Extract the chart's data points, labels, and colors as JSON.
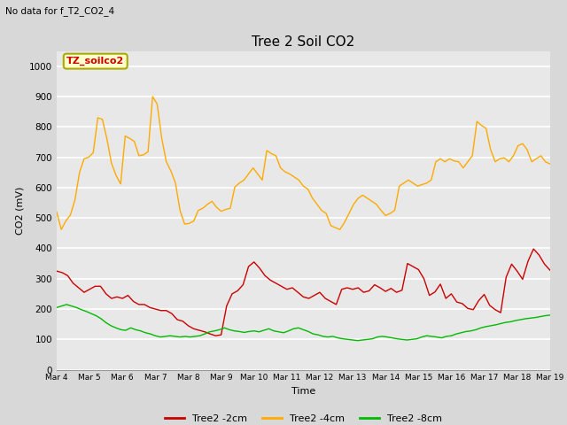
{
  "title": "Tree 2 Soil CO2",
  "subtitle": "No data for f_T2_CO2_4",
  "xlabel": "Time",
  "ylabel": "CO2 (mV)",
  "ylim": [
    0,
    1050
  ],
  "legend_label": "TZ_soilco2",
  "series_labels": [
    "Tree2 -2cm",
    "Tree2 -4cm",
    "Tree2 -8cm"
  ],
  "series_colors": [
    "#cc0000",
    "#ffaa00",
    "#00bb00"
  ],
  "xtick_labels": [
    "Mar 4",
    "Mar 5",
    "Mar 6",
    "Mar 7",
    "Mar 8",
    "Mar 9",
    "Mar 10",
    "Mar 11",
    "Mar 12",
    "Mar 13",
    "Mar 14",
    "Mar 15",
    "Mar 16",
    "Mar 17",
    "Mar 18",
    "Mar 19"
  ],
  "background_color": "#d8d8d8",
  "plot_bg_color": "#e8e8e8",
  "red_data": [
    325,
    320,
    310,
    285,
    270,
    255,
    265,
    275,
    275,
    250,
    235,
    240,
    235,
    245,
    225,
    215,
    215,
    205,
    200,
    195,
    195,
    185,
    165,
    160,
    145,
    135,
    130,
    125,
    118,
    112,
    115,
    210,
    250,
    260,
    280,
    340,
    355,
    335,
    310,
    295,
    285,
    275,
    265,
    270,
    255,
    240,
    235,
    245,
    255,
    235,
    225,
    215,
    265,
    270,
    265,
    270,
    255,
    260,
    280,
    270,
    258,
    268,
    255,
    262,
    350,
    340,
    330,
    300,
    245,
    256,
    282,
    235,
    250,
    223,
    218,
    202,
    198,
    228,
    248,
    212,
    198,
    188,
    305,
    348,
    325,
    298,
    358,
    398,
    378,
    348,
    328
  ],
  "orange_data": [
    520,
    462,
    490,
    510,
    560,
    650,
    695,
    700,
    715,
    830,
    825,
    760,
    680,
    640,
    612,
    770,
    762,
    752,
    705,
    708,
    718,
    900,
    875,
    762,
    685,
    655,
    615,
    525,
    480,
    482,
    490,
    525,
    532,
    545,
    555,
    535,
    522,
    528,
    532,
    602,
    615,
    625,
    645,
    665,
    645,
    625,
    722,
    712,
    705,
    665,
    652,
    645,
    635,
    625,
    605,
    595,
    565,
    545,
    525,
    515,
    475,
    468,
    462,
    485,
    515,
    545,
    565,
    575,
    565,
    555,
    545,
    525,
    508,
    515,
    525,
    605,
    615,
    625,
    615,
    605,
    610,
    615,
    625,
    685,
    695,
    685,
    695,
    688,
    685,
    665,
    685,
    705,
    818,
    805,
    795,
    725,
    685,
    695,
    698,
    685,
    705,
    738,
    745,
    725,
    685,
    695,
    705,
    685,
    678
  ],
  "green_data": [
    205,
    210,
    215,
    210,
    205,
    198,
    192,
    185,
    178,
    168,
    155,
    145,
    138,
    132,
    130,
    138,
    132,
    128,
    122,
    118,
    112,
    108,
    110,
    112,
    110,
    108,
    110,
    108,
    110,
    112,
    118,
    125,
    128,
    132,
    138,
    132,
    128,
    126,
    123,
    126,
    128,
    125,
    130,
    135,
    128,
    125,
    122,
    128,
    135,
    138,
    132,
    126,
    118,
    115,
    110,
    108,
    110,
    105,
    102,
    100,
    98,
    96,
    98,
    100,
    102,
    108,
    110,
    108,
    105,
    102,
    100,
    98,
    100,
    102,
    108,
    112,
    110,
    108,
    105,
    110,
    112,
    118,
    122,
    126,
    128,
    132,
    138,
    142,
    145,
    148,
    152,
    156,
    158,
    162,
    165,
    168,
    170,
    172,
    175,
    178,
    180
  ]
}
